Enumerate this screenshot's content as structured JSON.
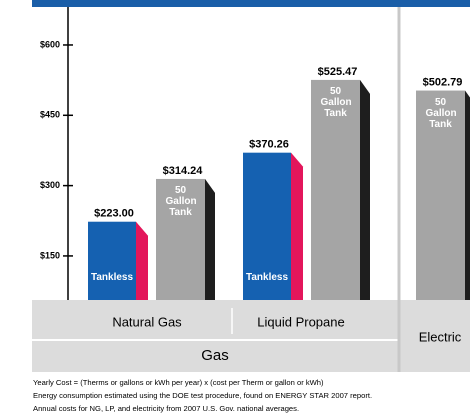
{
  "chart_data": {
    "type": "bar",
    "categories": [
      "Natural Gas",
      "Liquid Propane",
      "Electric"
    ],
    "category_group": "Gas",
    "series": [
      {
        "name": "Tankless",
        "color": "#1561b1",
        "side_color": "#e3165b",
        "values": [
          223.0,
          370.26,
          null
        ],
        "value_labels": [
          "$223.00",
          "$370.26",
          null
        ]
      },
      {
        "name": "50 Gallon Tank",
        "color": "#a5a5a5",
        "side_color": "#1e1e1e",
        "values": [
          314.24,
          525.47,
          502.79
        ],
        "value_labels": [
          "$314.24",
          "$525.47",
          "$502.79"
        ]
      }
    ],
    "ylim": [
      56,
      681
    ],
    "yticks": [
      {
        "value": 150,
        "label": "$150"
      },
      {
        "value": 300,
        "label": "$300"
      },
      {
        "value": 450,
        "label": "$450"
      },
      {
        "value": 600,
        "label": "$600"
      }
    ],
    "notes": [
      "Yearly Cost = (Therms or gallons or kWh per year) x (cost per Therm or gallon or kWh)",
      "Energy consumption estimated using the DOE test procedure, found on ENERGY STAR 2007 report.",
      "Annual costs for NG, LP, and electricity from 2007 U.S. Gov. national averages."
    ]
  }
}
